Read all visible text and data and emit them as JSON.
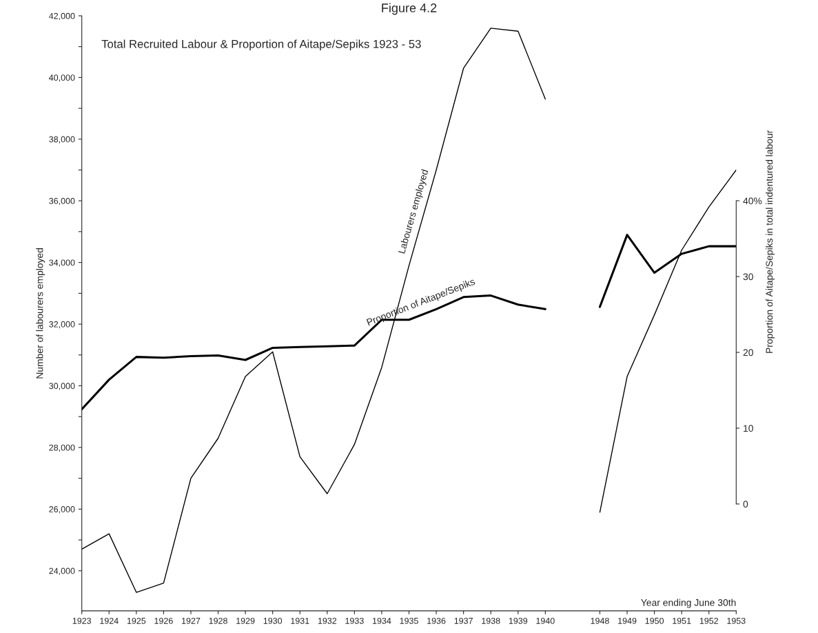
{
  "chart_data": {
    "type": "line",
    "title": "Figure 4.2",
    "subtitle": "Total Recruited Labour & Proportion of Aitape/Sepiks 1923 - 53",
    "xlabel": "Year ending June 30th",
    "ylabel": "Number of labourers employed",
    "y2label": "Proportion of Aitape/Sepiks in total indentured labour",
    "categories": [
      "1923",
      "1924",
      "1925",
      "1926",
      "1927",
      "1928",
      "1929",
      "1930",
      "1931",
      "1932",
      "1933",
      "1934",
      "1935",
      "1936",
      "1937",
      "1938",
      "1939",
      "1940",
      null,
      "1948",
      "1949",
      "1950",
      "1951",
      "1952",
      "1953"
    ],
    "series": [
      {
        "name": "Labourers employed",
        "color": "#000000",
        "values": [
          24700,
          25200,
          23300,
          23600,
          27000,
          28300,
          30300,
          31100,
          27700,
          26500,
          28100,
          30600,
          33900,
          37000,
          40300,
          41600,
          41500,
          39300,
          null,
          25900,
          30300,
          32300,
          34400,
          35800,
          37000
        ]
      },
      {
        "name": "Proportion of Aitape/Sepiks",
        "color": "#000000",
        "axis": "y2",
        "values": [
          12.5,
          16.4,
          19.4,
          19.3,
          19.5,
          19.6,
          19.0,
          20.6,
          20.7,
          20.8,
          20.9,
          24.3,
          24.3,
          25.7,
          27.3,
          27.5,
          26.3,
          25.7,
          null,
          26,
          35.5,
          30.5,
          33,
          34,
          34
        ]
      }
    ],
    "ylim": [
      22700,
      42000
    ],
    "yticks": [
      {
        "value": 24000,
        "label": "24,000"
      },
      {
        "value": 25000,
        "label": null
      },
      {
        "value": 26000,
        "label": "26,000"
      },
      {
        "value": 27000,
        "label": null
      },
      {
        "value": 28000,
        "label": "28,000"
      },
      {
        "value": 29000,
        "label": null
      },
      {
        "value": 30000,
        "label": "30,000"
      },
      {
        "value": 31000,
        "label": null
      },
      {
        "value": 32000,
        "label": "32,000"
      },
      {
        "value": 33000,
        "label": null
      },
      {
        "value": 34000,
        "label": "34,000"
      },
      {
        "value": 35000,
        "label": null
      },
      {
        "value": 36000,
        "label": "36,000"
      },
      {
        "value": 37000,
        "label": null
      },
      {
        "value": 38000,
        "label": "38,000"
      },
      {
        "value": 39000,
        "label": null
      },
      {
        "value": 40000,
        "label": "40,000"
      },
      {
        "value": 41000,
        "label": null
      },
      {
        "value": 42000,
        "label": "42,000"
      }
    ],
    "y2lim": [
      -14.1,
      64.4
    ],
    "y2ticks": [
      0,
      10,
      20,
      30,
      {
        "value": 40,
        "label": "40%"
      }
    ],
    "grid": false,
    "legend": false,
    "marker": "none",
    "line_style": "solid"
  }
}
